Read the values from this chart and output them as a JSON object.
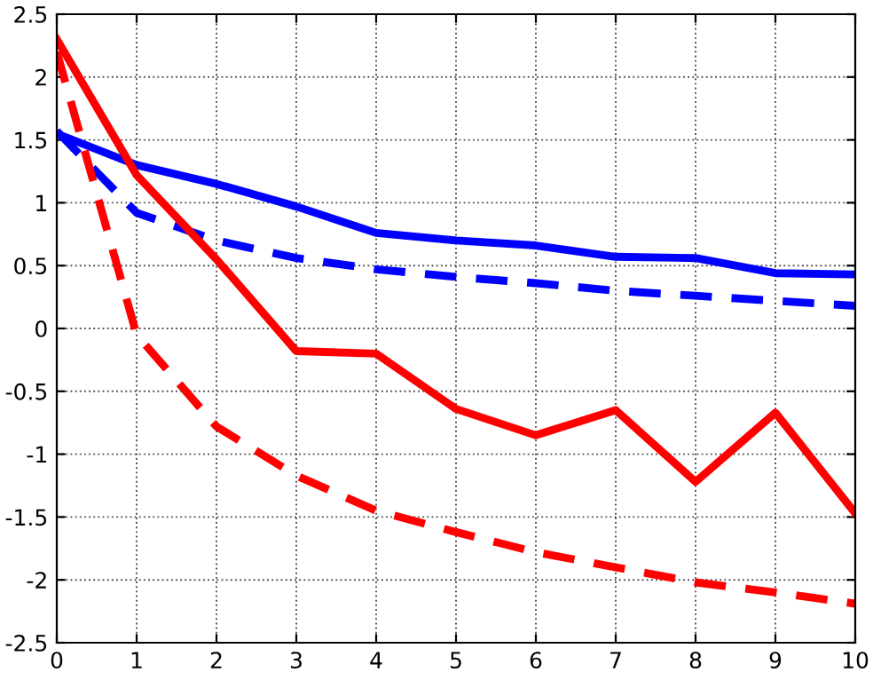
{
  "chart_data": {
    "type": "line",
    "x": [
      0,
      1,
      2,
      3,
      4,
      5,
      6,
      7,
      8,
      9,
      10
    ],
    "series": [
      {
        "color": "#0000ff",
        "line_style": "solid",
        "values": [
          1.55,
          1.3,
          1.15,
          0.97,
          0.76,
          0.7,
          0.66,
          0.57,
          0.56,
          0.44,
          0.43
        ]
      },
      {
        "color": "#0000ff",
        "line_style": "dashed",
        "values": [
          1.57,
          0.92,
          0.7,
          0.56,
          0.47,
          0.41,
          0.36,
          0.3,
          0.26,
          0.22,
          0.18
        ]
      },
      {
        "color": "#ff0000",
        "line_style": "solid",
        "values": [
          2.3,
          1.22,
          0.55,
          -0.18,
          -0.2,
          -0.64,
          -0.85,
          -0.65,
          -1.22,
          -0.67,
          -1.47
        ]
      },
      {
        "color": "#ff0000",
        "line_style": "dashed",
        "values": [
          2.2,
          -0.05,
          -0.78,
          -1.17,
          -1.45,
          -1.62,
          -1.78,
          -1.9,
          -2.02,
          -2.1,
          -2.19
        ]
      }
    ],
    "xlim": [
      0,
      10
    ],
    "xticks": [
      0,
      1,
      2,
      3,
      4,
      5,
      6,
      7,
      8,
      9,
      10
    ],
    "ylim": [
      -2.5,
      2.5
    ],
    "yticks": [
      -2.5,
      -2,
      -1.5,
      -1,
      -0.5,
      0,
      0.5,
      1,
      1.5,
      2,
      2.5
    ],
    "grid": true,
    "marker": "none"
  }
}
